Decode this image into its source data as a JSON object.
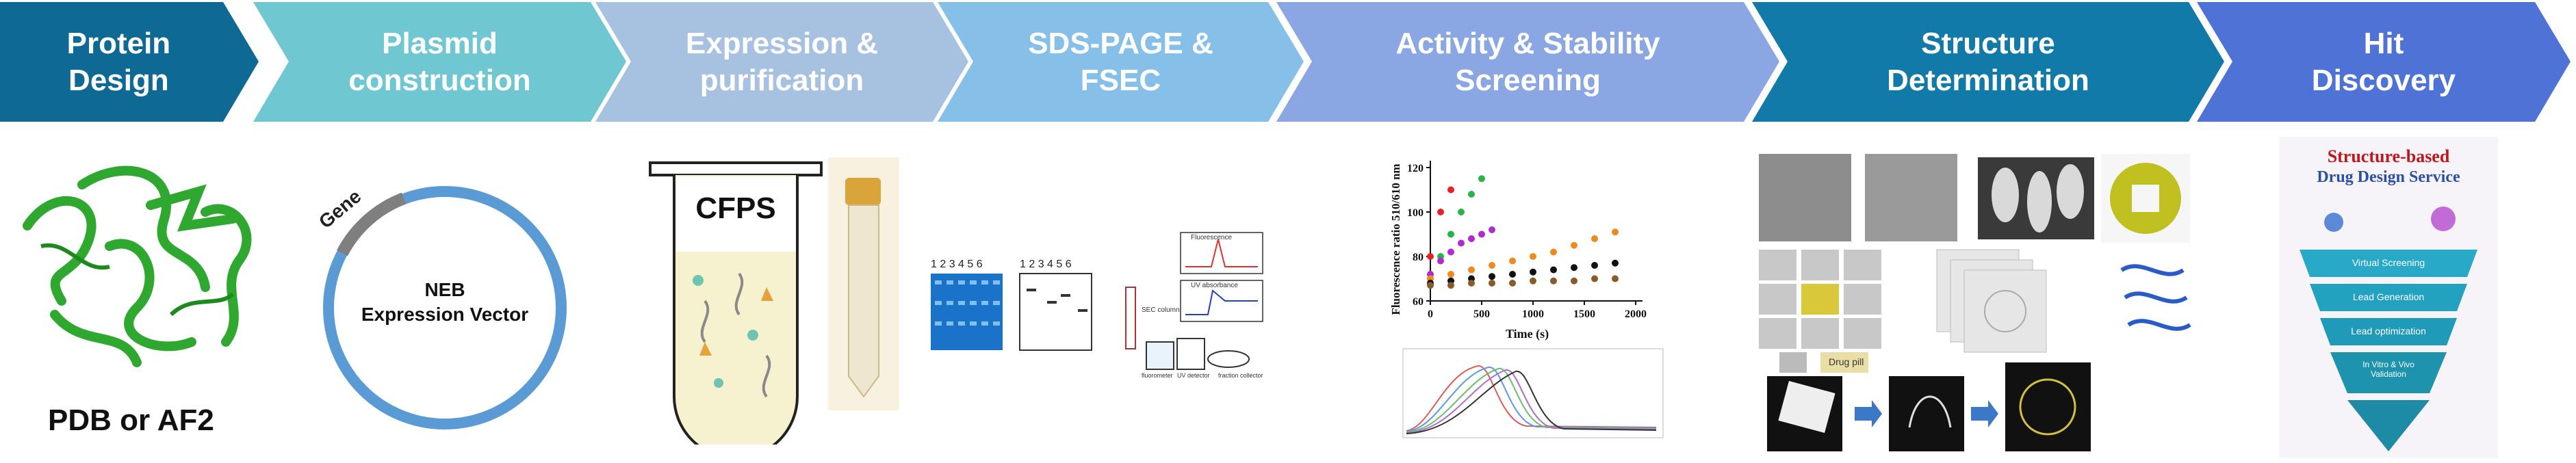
{
  "steps": [
    {
      "label": "Protein\nDesign",
      "color": "#0e6a94"
    },
    {
      "label": "Plasmid\nconstruction",
      "color": "#6ec7d1"
    },
    {
      "label": "Expression &\npurification",
      "color": "#a7c1e0"
    },
    {
      "label": "SDS-PAGE &\nFSEC",
      "color": "#86bfe8"
    },
    {
      "label": "Activity & Stability\nScreening",
      "color": "#8aa6e3"
    },
    {
      "label": "Structure\nDetermination",
      "color": "#127aa8"
    },
    {
      "label": "Hit\nDiscovery",
      "color": "#4f72d6"
    }
  ],
  "protein_design": {
    "caption": "PDB or AF2"
  },
  "plasmid": {
    "gene_label": "Gene",
    "vector_line1": "NEB",
    "vector_line2": "Expression Vector"
  },
  "expression": {
    "tube_label": "CFPS"
  },
  "sds_page": {
    "lanes_a": "1 2 3 4 5 6",
    "lanes_b": "1 2 3 4 5 6",
    "fluor_label": "Fluorescence",
    "uv_label": "UV absorbance",
    "sec_label": "SEC column",
    "fluorometer": "fluorometer",
    "uv_detector": "UV detector",
    "fraction": "fraction collector"
  },
  "activity": {
    "ylabel": "Fluorescence ratio 510/610 nm",
    "xlabel": "Time (s)",
    "yticks": [
      "120",
      "100",
      "80",
      "60"
    ],
    "xticks": [
      "0",
      "500",
      "1000",
      "1500",
      "2000"
    ]
  },
  "structure": {
    "drug_label": "Drug pill"
  },
  "hit": {
    "title_line1": "Structure-based",
    "title_line2": "Drug Design Service",
    "funnel": [
      "Virtual Screening",
      "Lead Generation",
      "Lead optimization",
      "In Vitro & Vivo\nValidation"
    ]
  },
  "chart_data": {
    "type": "scatter",
    "title": "",
    "xlabel": "Time (s)",
    "ylabel": "Fluorescence ratio 510/610 nm",
    "xlim": [
      0,
      2000
    ],
    "ylim": [
      60,
      120
    ],
    "series": [
      {
        "color": "#e8202a",
        "x": [
          0,
          100,
          200
        ],
        "y": [
          80,
          100,
          110
        ]
      },
      {
        "color": "#2ab34a",
        "x": [
          0,
          100,
          200,
          300,
          400,
          500
        ],
        "y": [
          70,
          80,
          90,
          100,
          108,
          115
        ]
      },
      {
        "color": "#b02ad0",
        "x": [
          0,
          100,
          200,
          300,
          400,
          500,
          600
        ],
        "y": [
          72,
          78,
          82,
          86,
          88,
          90,
          92
        ]
      },
      {
        "color": "#f08a1e",
        "x": [
          0,
          200,
          400,
          600,
          800,
          1000,
          1200,
          1400,
          1600,
          1800
        ],
        "y": [
          70,
          72,
          74,
          76,
          78,
          80,
          82,
          85,
          88,
          91
        ]
      },
      {
        "color": "#111111",
        "x": [
          0,
          200,
          400,
          600,
          800,
          1000,
          1200,
          1400,
          1600,
          1800
        ],
        "y": [
          68,
          69,
          70,
          71,
          72,
          73,
          74,
          75,
          76,
          77
        ]
      },
      {
        "color": "#8b5a2b",
        "x": [
          0,
          200,
          400,
          600,
          800,
          1000,
          1200,
          1400,
          1600,
          1800
        ],
        "y": [
          67,
          67,
          68,
          68,
          68,
          69,
          69,
          69,
          70,
          70
        ]
      }
    ]
  }
}
